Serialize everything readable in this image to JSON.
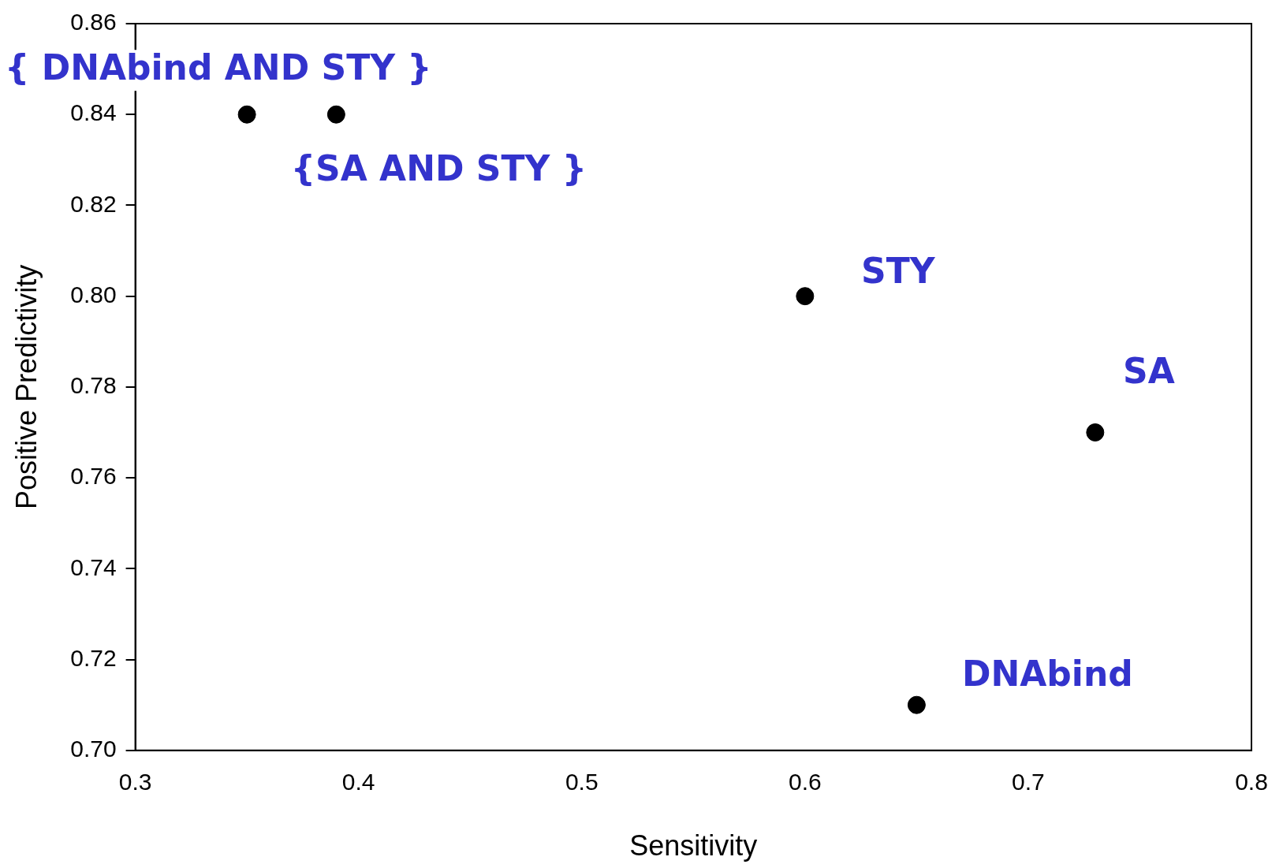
{
  "chart_data": {
    "type": "scatter",
    "xlabel": "Sensitivity",
    "ylabel": "Positive Predictivity",
    "x": [
      0.35,
      0.39,
      0.6,
      0.73,
      0.65
    ],
    "values": [
      0.84,
      0.84,
      0.8,
      0.77,
      0.71
    ],
    "color": "#000000",
    "marker": "circle",
    "grid": false,
    "legend": false,
    "xlim": [
      0.3,
      0.8
    ],
    "xticks": [
      0.3,
      0.4,
      0.5,
      0.6,
      0.7,
      0.8
    ],
    "ylim": [
      0.7,
      0.86
    ],
    "yticks": [
      {
        "value": 0.7,
        "label": "0.70"
      },
      {
        "value": 0.72,
        "label": "0.72"
      },
      {
        "value": 0.74,
        "label": "0.74"
      },
      {
        "value": 0.76,
        "label": "0.76"
      },
      {
        "value": 0.78,
        "label": "0.78"
      },
      {
        "value": 0.8,
        "label": "0.80"
      },
      {
        "value": 0.82,
        "label": "0.82"
      },
      {
        "value": 0.84,
        "label": "0.84"
      },
      {
        "value": 0.86,
        "label": "0.86"
      }
    ],
    "annotations": [
      {
        "text": "{ DNAbind AND STY }",
        "x": 0.35,
        "y": 0.84
      },
      {
        "text": "{SA AND STY }",
        "x": 0.39,
        "y": 0.84
      },
      {
        "text": "STY",
        "x": 0.6,
        "y": 0.8
      },
      {
        "text": "SA",
        "x": 0.73,
        "y": 0.77
      },
      {
        "text": "DNAbind",
        "x": 0.65,
        "y": 0.71
      }
    ]
  }
}
